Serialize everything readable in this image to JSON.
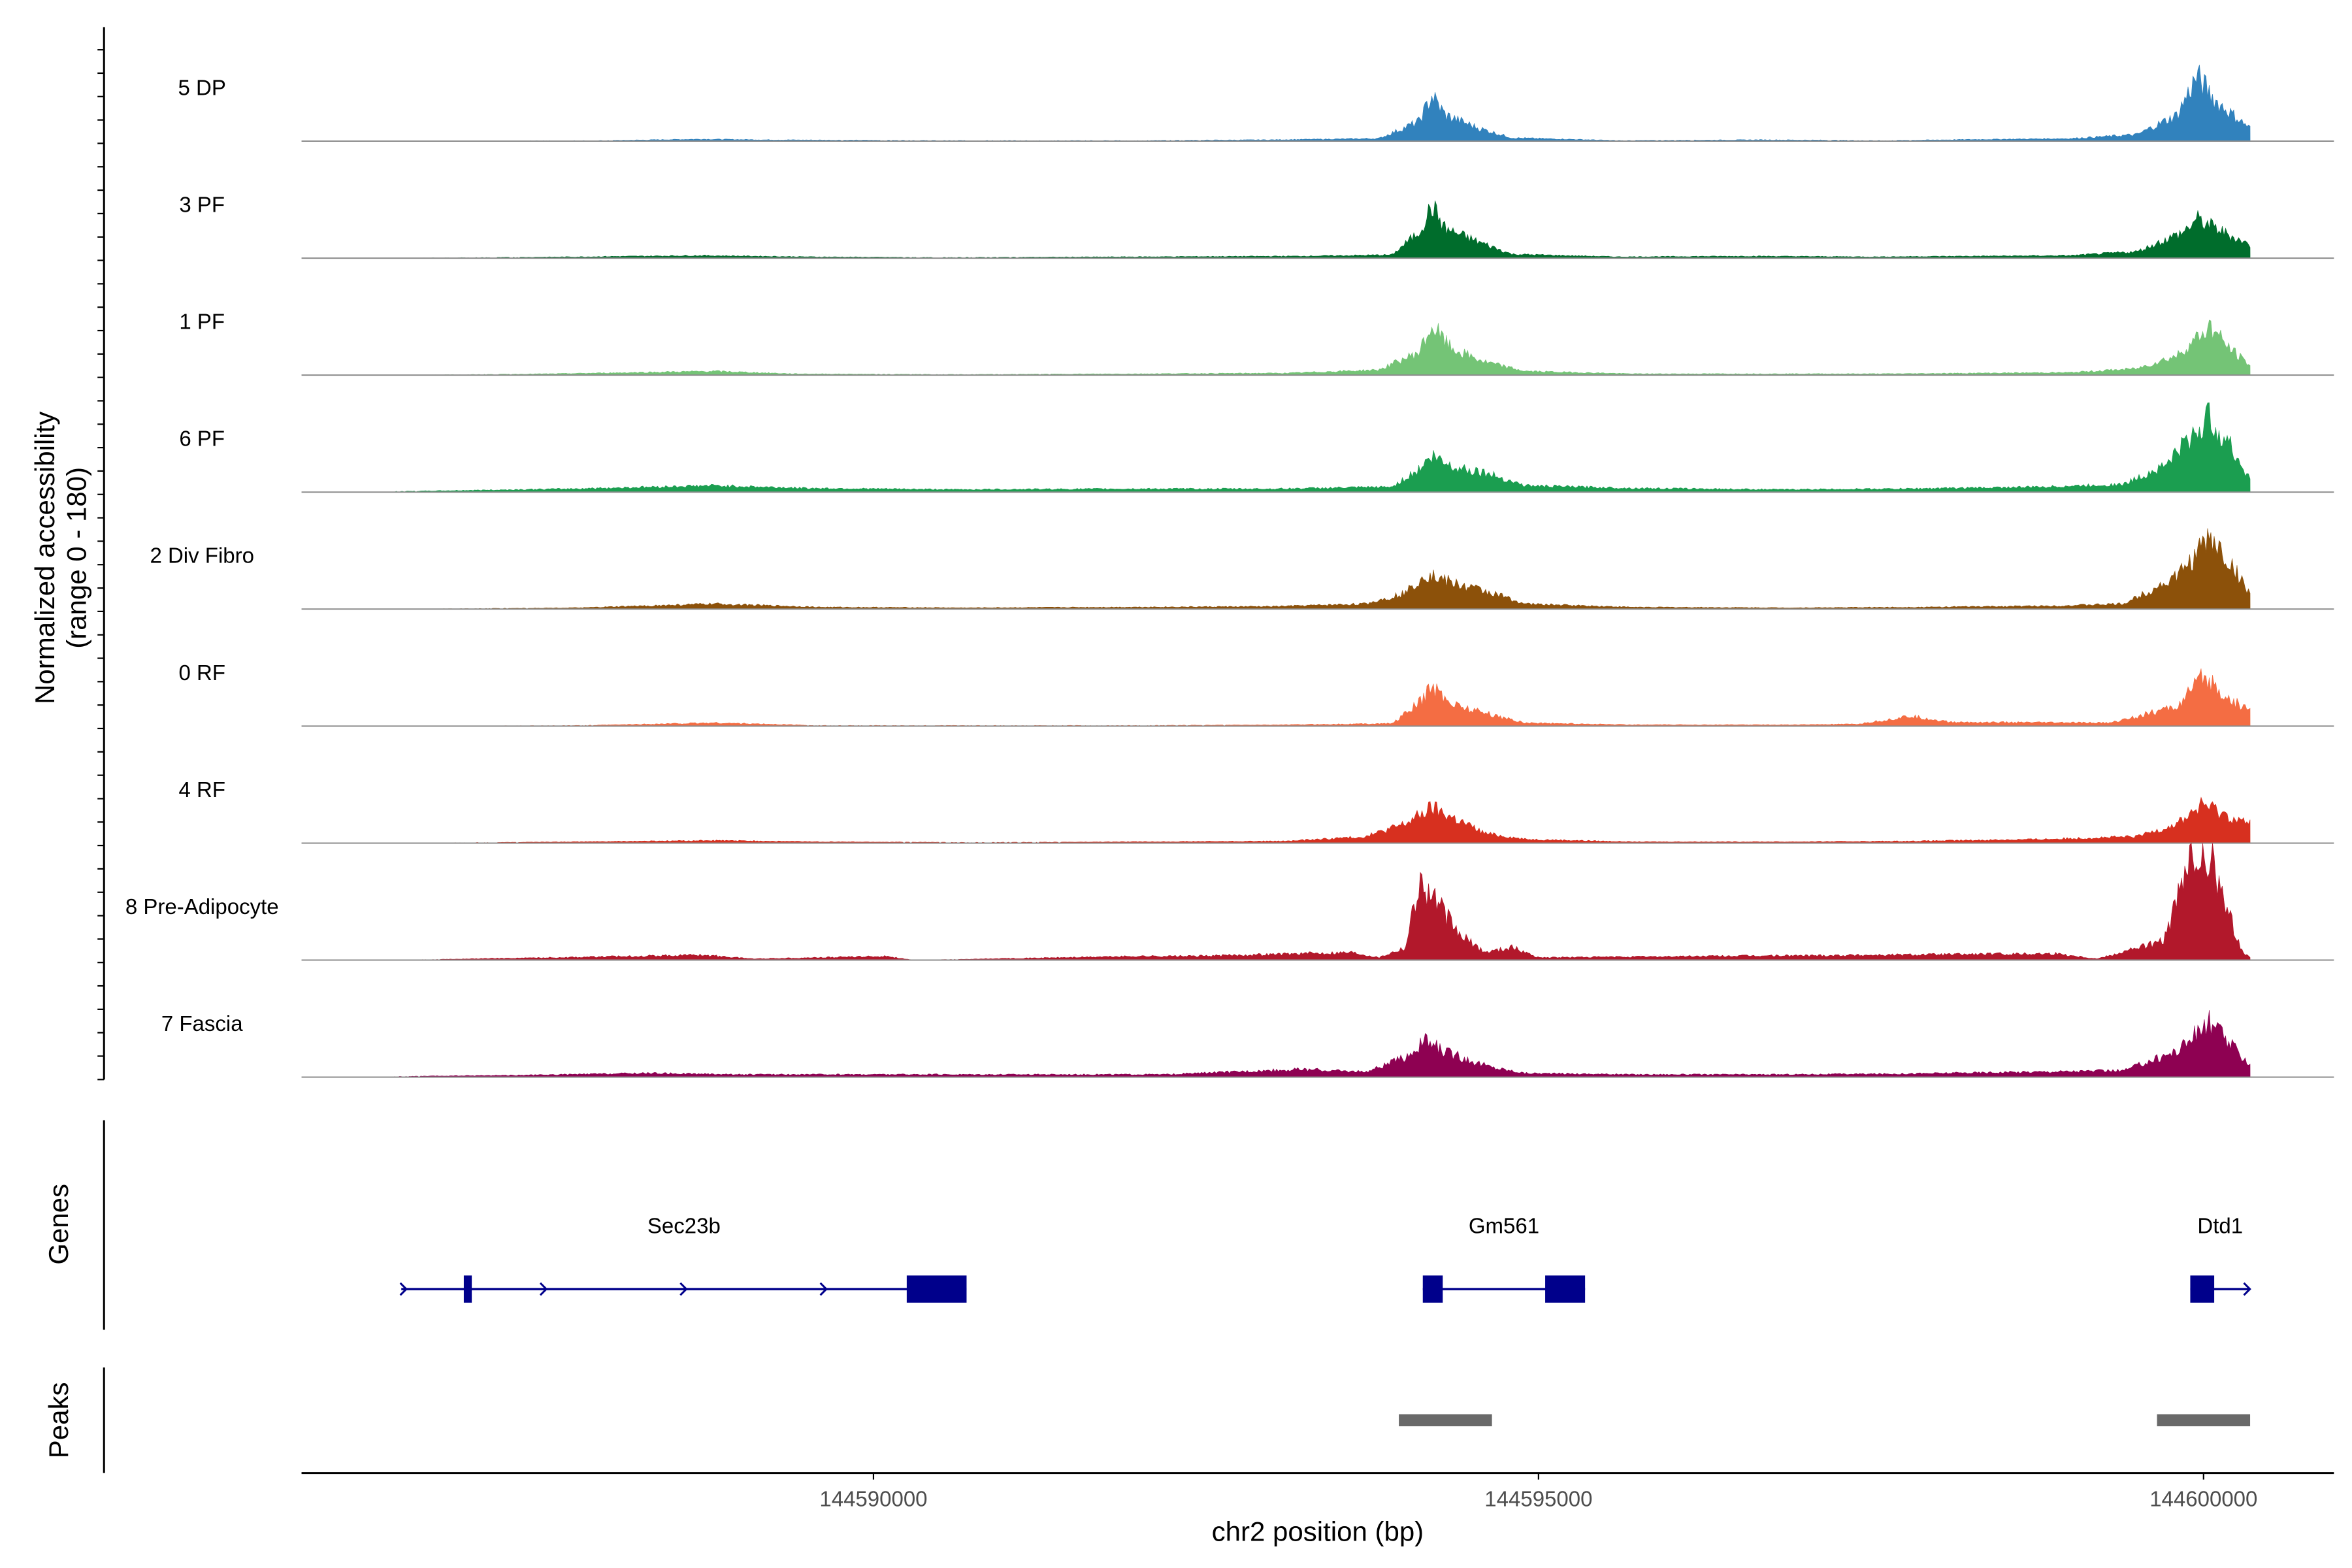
{
  "chart_data": {
    "type": "area",
    "title": "",
    "ylabel": "Normalized accessibility\n(range 0 - 180)",
    "ylim": [
      0,
      180
    ],
    "xlabel": "chr2 position (bp)",
    "xlim": [
      144585700,
      144600980
    ],
    "x_ticks": [
      144590000,
      144595000,
      144600000
    ],
    "x_tick_labels": [
      "144590000",
      "144595000",
      "144600000"
    ],
    "region": {
      "start": 144586400,
      "end": 144600350
    },
    "series": [
      {
        "name": "5 DP",
        "color": "#3182bd",
        "profile": [
          [
            144586400,
            0
          ],
          [
            144588000,
            1
          ],
          [
            144588700,
            3
          ],
          [
            144589200,
            2
          ],
          [
            144590500,
            1
          ],
          [
            144592000,
            1
          ],
          [
            144593000,
            2
          ],
          [
            144593800,
            4
          ],
          [
            144594100,
            30
          ],
          [
            144594200,
            70
          ],
          [
            144594300,
            40
          ],
          [
            144594550,
            20
          ],
          [
            144594800,
            5
          ],
          [
            144595600,
            1
          ],
          [
            144596700,
            2
          ],
          [
            144597600,
            1
          ],
          [
            144599000,
            4
          ],
          [
            144599500,
            10
          ],
          [
            144599800,
            40
          ],
          [
            144599950,
            100
          ],
          [
            144600100,
            60
          ],
          [
            144600350,
            20
          ]
        ]
      },
      {
        "name": "3 PF",
        "color": "#006d2c",
        "profile": [
          [
            144586400,
            0
          ],
          [
            144587800,
            2
          ],
          [
            144588700,
            4
          ],
          [
            144589500,
            2
          ],
          [
            144590500,
            1
          ],
          [
            144592000,
            2
          ],
          [
            144593200,
            3
          ],
          [
            144593900,
            5
          ],
          [
            144594100,
            40
          ],
          [
            144594200,
            80
          ],
          [
            144594300,
            45
          ],
          [
            144594550,
            25
          ],
          [
            144594800,
            6
          ],
          [
            144595600,
            2
          ],
          [
            144596600,
            3
          ],
          [
            144597500,
            2
          ],
          [
            144599000,
            4
          ],
          [
            144599500,
            10
          ],
          [
            144599850,
            40
          ],
          [
            144599950,
            60
          ],
          [
            144600150,
            40
          ],
          [
            144600350,
            20
          ]
        ]
      },
      {
        "name": "1 PF",
        "color": "#74c476",
        "profile": [
          [
            144586400,
            0
          ],
          [
            144587600,
            2
          ],
          [
            144588800,
            6
          ],
          [
            144589400,
            2
          ],
          [
            144590600,
            1
          ],
          [
            144592000,
            2
          ],
          [
            144593100,
            3
          ],
          [
            144593800,
            8
          ],
          [
            144594100,
            35
          ],
          [
            144594200,
            75
          ],
          [
            144594350,
            40
          ],
          [
            144594600,
            20
          ],
          [
            144594900,
            6
          ],
          [
            144595700,
            2
          ],
          [
            144596800,
            2
          ],
          [
            144597600,
            2
          ],
          [
            144599000,
            4
          ],
          [
            144599500,
            10
          ],
          [
            144599800,
            30
          ],
          [
            144600050,
            75
          ],
          [
            144600200,
            40
          ],
          [
            144600350,
            15
          ]
        ]
      },
      {
        "name": "6 PF",
        "color": "#1b9e50",
        "profile": [
          [
            144586400,
            1
          ],
          [
            144587700,
            5
          ],
          [
            144588800,
            10
          ],
          [
            144589500,
            6
          ],
          [
            144590600,
            4
          ],
          [
            144591900,
            5
          ],
          [
            144593000,
            5
          ],
          [
            144593900,
            8
          ],
          [
            144594100,
            35
          ],
          [
            144594200,
            55
          ],
          [
            144594350,
            40
          ],
          [
            144594600,
            30
          ],
          [
            144594900,
            10
          ],
          [
            144595700,
            6
          ],
          [
            144596800,
            4
          ],
          [
            144597700,
            5
          ],
          [
            144598800,
            8
          ],
          [
            144599400,
            12
          ],
          [
            144599700,
            40
          ],
          [
            144600050,
            115
          ],
          [
            144600200,
            70
          ],
          [
            144600350,
            20
          ]
        ]
      },
      {
        "name": "2 Div Fibro",
        "color": "#8c510a",
        "profile": [
          [
            144586400,
            0
          ],
          [
            144587800,
            2
          ],
          [
            144588800,
            8
          ],
          [
            144589600,
            3
          ],
          [
            144590700,
            2
          ],
          [
            144591900,
            3
          ],
          [
            144593000,
            4
          ],
          [
            144593700,
            8
          ],
          [
            144594000,
            25
          ],
          [
            144594150,
            55
          ],
          [
            144594350,
            40
          ],
          [
            144594650,
            25
          ],
          [
            144594900,
            8
          ],
          [
            144595700,
            3
          ],
          [
            144596900,
            2
          ],
          [
            144597900,
            3
          ],
          [
            144598900,
            5
          ],
          [
            144599400,
            8
          ],
          [
            144599800,
            50
          ],
          [
            144600050,
            110
          ],
          [
            144600200,
            70
          ],
          [
            144600350,
            25
          ]
        ]
      },
      {
        "name": "0 RF",
        "color": "#f46d43",
        "profile": [
          [
            144586400,
            0
          ],
          [
            144587800,
            1
          ],
          [
            144588800,
            5
          ],
          [
            144589600,
            1
          ],
          [
            144590800,
            1
          ],
          [
            144592000,
            1
          ],
          [
            144593100,
            2
          ],
          [
            144593900,
            4
          ],
          [
            144594100,
            35
          ],
          [
            144594200,
            60
          ],
          [
            144594350,
            35
          ],
          [
            144594600,
            20
          ],
          [
            144594900,
            5
          ],
          [
            144595700,
            2
          ],
          [
            144596900,
            2
          ],
          [
            144597400,
            3
          ],
          [
            144597800,
            15
          ],
          [
            144598100,
            6
          ],
          [
            144599300,
            5
          ],
          [
            144599800,
            30
          ],
          [
            144600000,
            75
          ],
          [
            144600200,
            40
          ],
          [
            144600350,
            25
          ]
        ]
      },
      {
        "name": "4 RF",
        "color": "#d7301f",
        "profile": [
          [
            144586400,
            0
          ],
          [
            144587800,
            2
          ],
          [
            144588800,
            4
          ],
          [
            144589600,
            2
          ],
          [
            144590800,
            1
          ],
          [
            144592000,
            2
          ],
          [
            144593100,
            3
          ],
          [
            144593700,
            10
          ],
          [
            144594000,
            30
          ],
          [
            144594200,
            55
          ],
          [
            144594350,
            40
          ],
          [
            144594600,
            15
          ],
          [
            144594900,
            6
          ],
          [
            144595700,
            2
          ],
          [
            144596900,
            2
          ],
          [
            144597800,
            3
          ],
          [
            144598800,
            6
          ],
          [
            144599500,
            10
          ],
          [
            144599800,
            30
          ],
          [
            144600000,
            60
          ],
          [
            144600200,
            40
          ],
          [
            144600350,
            30
          ]
        ]
      },
      {
        "name": "8 Pre-Adipocyte",
        "color": "#b2182b",
        "profile": [
          [
            144586400,
            0
          ],
          [
            144588200,
            6
          ],
          [
            144588700,
            8
          ],
          [
            144589100,
            2
          ],
          [
            144590100,
            6
          ],
          [
            144590300,
            0
          ],
          [
            144592000,
            6
          ],
          [
            144592400,
            6
          ],
          [
            144593600,
            12
          ],
          [
            144593800,
            4
          ],
          [
            144594000,
            20
          ],
          [
            144594100,
            120
          ],
          [
            144594200,
            100
          ],
          [
            144594400,
            40
          ],
          [
            144594600,
            12
          ],
          [
            144594800,
            20
          ],
          [
            144595000,
            4
          ],
          [
            144598900,
            10
          ],
          [
            144599200,
            2
          ],
          [
            144599700,
            30
          ],
          [
            144599900,
            150
          ],
          [
            144600050,
            160
          ],
          [
            144600150,
            90
          ],
          [
            144600300,
            10
          ],
          [
            144600350,
            5
          ]
        ]
      },
      {
        "name": "7 Fascia",
        "color": "#8e0152",
        "profile": [
          [
            144586400,
            1
          ],
          [
            144587400,
            3
          ],
          [
            144588300,
            6
          ],
          [
            144589000,
            4
          ],
          [
            144590000,
            4
          ],
          [
            144591000,
            4
          ],
          [
            144592200,
            4
          ],
          [
            144593200,
            12
          ],
          [
            144593700,
            8
          ],
          [
            144594000,
            30
          ],
          [
            144594150,
            55
          ],
          [
            144594350,
            35
          ],
          [
            144594650,
            15
          ],
          [
            144594900,
            6
          ],
          [
            144595700,
            4
          ],
          [
            144596800,
            4
          ],
          [
            144597700,
            5
          ],
          [
            144598700,
            8
          ],
          [
            144599400,
            10
          ],
          [
            144599800,
            40
          ],
          [
            144600050,
            85
          ],
          [
            144600200,
            50
          ],
          [
            144600350,
            20
          ]
        ]
      }
    ],
    "genes_track_label": "Genes",
    "peaks_track_label": "Peaks",
    "genes": [
      {
        "name": "Sec23b",
        "strand": "+",
        "start": 144586450,
        "end": 144590700,
        "exons": [
          [
            144586920,
            144586980
          ],
          [
            144590250,
            144590700
          ]
        ]
      },
      {
        "name": "Gm561",
        "strand": "+",
        "start": 144594130,
        "end": 144595350,
        "exons": [
          [
            144594130,
            144594280
          ],
          [
            144595050,
            144595350
          ]
        ]
      },
      {
        "name": "Dtd1",
        "strand": "+",
        "start": 144599900,
        "end": 144600350,
        "exons": [
          [
            144599900,
            144600080
          ]
        ]
      }
    ],
    "peaks": [
      {
        "start": 144593950,
        "end": 144594650
      },
      {
        "start": 144599650,
        "end": 144600350
      }
    ],
    "grid": false,
    "legend": "none"
  }
}
